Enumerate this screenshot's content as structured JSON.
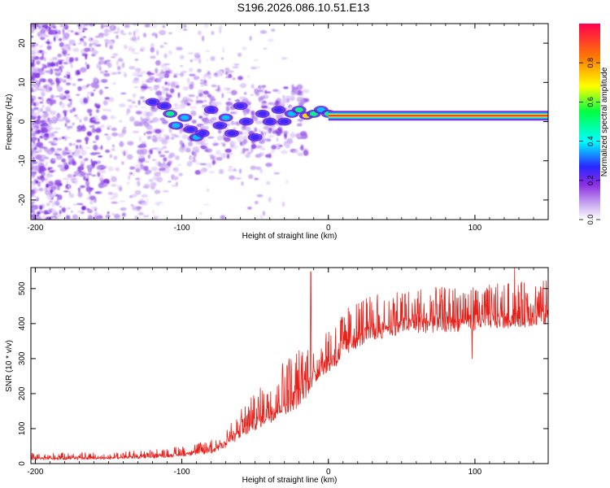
{
  "title": "S196.2026.086.10.51.E13",
  "chart_data": [
    {
      "type": "heatmap",
      "name": "spectrogram",
      "xlabel": "Height of straight line (km)",
      "ylabel": "Frequency (Hz)",
      "xlim": [
        -203,
        150
      ],
      "ylim": [
        -25,
        25
      ],
      "xticks": [
        -200,
        -100,
        0,
        100
      ],
      "xtick_labels": [
        "-200",
        "-100",
        "0",
        "100"
      ],
      "yticks": [
        -20,
        -10,
        0,
        10,
        20
      ],
      "ytick_labels": [
        "-20",
        "-10",
        "0",
        "10",
        "20"
      ],
      "colorbar": {
        "label": "Normalized spectral amplitude",
        "range": [
          0,
          1
        ],
        "ticks": [
          0.0,
          0.2,
          0.4,
          0.6,
          0.8
        ],
        "tick_labels": [
          "0.0",
          "0.2",
          "0.4",
          "0.6",
          "0.8"
        ],
        "colors": [
          "#ffffff",
          "#8a2be2",
          "#2828ff",
          "#00ffff",
          "#00ff40",
          "#ffff00",
          "#ff8000",
          "#ff0050"
        ]
      },
      "features": {
        "carrier_line": {
          "x_start": 0,
          "x_end": 150,
          "frequency_hz": 1.5,
          "amplitude": 0.95
        },
        "converging_blobs": [
          {
            "x": -120,
            "f": 5,
            "a": 0.35
          },
          {
            "x": -112,
            "f": 4,
            "a": 0.4
          },
          {
            "x": -108,
            "f": 2,
            "a": 0.55
          },
          {
            "x": -104,
            "f": -1,
            "a": 0.45
          },
          {
            "x": -98,
            "f": 1,
            "a": 0.5
          },
          {
            "x": -94,
            "f": -2,
            "a": 0.4
          },
          {
            "x": -90,
            "f": -4,
            "a": 0.45
          },
          {
            "x": -86,
            "f": -3,
            "a": 0.4
          },
          {
            "x": -80,
            "f": 3,
            "a": 0.35
          },
          {
            "x": -74,
            "f": -1,
            "a": 0.4
          },
          {
            "x": -70,
            "f": 1,
            "a": 0.5
          },
          {
            "x": -66,
            "f": -3,
            "a": 0.3
          },
          {
            "x": -60,
            "f": 4,
            "a": 0.35
          },
          {
            "x": -56,
            "f": 0,
            "a": 0.4
          },
          {
            "x": -50,
            "f": -4,
            "a": 0.3
          },
          {
            "x": -45,
            "f": 2,
            "a": 0.35
          },
          {
            "x": -40,
            "f": 0,
            "a": 0.3
          },
          {
            "x": -34,
            "f": 3,
            "a": 0.4
          },
          {
            "x": -30,
            "f": 0,
            "a": 0.35
          },
          {
            "x": -25,
            "f": 2,
            "a": 0.45
          },
          {
            "x": -20,
            "f": 3,
            "a": 0.55
          },
          {
            "x": -15,
            "f": 1.5,
            "a": 0.7
          },
          {
            "x": -10,
            "f": 2,
            "a": 0.6
          },
          {
            "x": -5,
            "f": 3,
            "a": 0.5
          },
          {
            "x": 0,
            "f": 2,
            "a": 0.65
          },
          {
            "x": 5,
            "f": 1.5,
            "a": 0.75
          },
          {
            "x": 12,
            "f": 1.5,
            "a": 0.8
          }
        ]
      }
    },
    {
      "type": "line",
      "name": "snr",
      "xlabel": "Height of straight line (km)",
      "ylabel": "SNR (10 * v/v)",
      "xlim": [
        -203,
        150
      ],
      "ylim": [
        0,
        560
      ],
      "xticks": [
        -200,
        -100,
        0,
        100
      ],
      "xtick_labels": [
        "-200",
        "-100",
        "0",
        "100"
      ],
      "yticks": [
        0,
        100,
        200,
        300,
        400,
        500
      ],
      "ytick_labels": [
        "0",
        "100",
        "200",
        "300",
        "400",
        "500"
      ],
      "color": "#e8201a",
      "envelope": {
        "x": [
          -203,
          -150,
          -120,
          -100,
          -80,
          -70,
          -60,
          -50,
          -40,
          -30,
          -20,
          -15,
          -10,
          -5,
          0,
          5,
          10,
          20,
          30,
          50,
          80,
          100,
          120,
          150
        ],
        "base": [
          10,
          12,
          15,
          20,
          28,
          45,
          70,
          95,
          115,
          140,
          160,
          190,
          220,
          250,
          260,
          270,
          300,
          330,
          350,
          370,
          375,
          380,
          385,
          395
        ],
        "peak": [
          30,
          32,
          40,
          50,
          70,
          110,
          160,
          200,
          250,
          300,
          330,
          360,
          340,
          380,
          400,
          420,
          440,
          470,
          490,
          500,
          505,
          510,
          515,
          525
        ]
      },
      "spikes": [
        {
          "x": -12,
          "y": 548
        },
        {
          "x": 127,
          "y": 560
        },
        {
          "x": 98,
          "y": 300
        }
      ]
    }
  ]
}
